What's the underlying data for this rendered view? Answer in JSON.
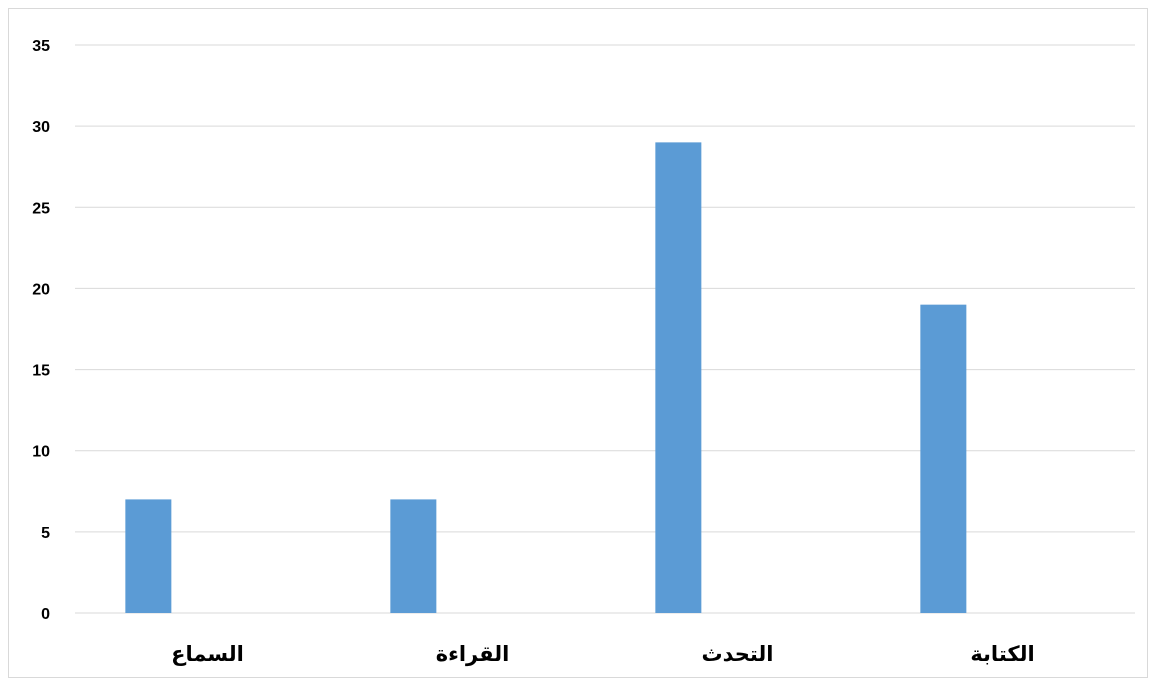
{
  "chart_data": {
    "type": "bar",
    "categories": [
      "السماع",
      "القراءة",
      "التحدث",
      "الكتابة"
    ],
    "values": [
      7,
      7,
      29,
      19
    ],
    "ylim": [
      0,
      35
    ],
    "yticks": [
      0,
      5,
      10,
      15,
      20,
      25,
      30,
      35
    ],
    "grid": true,
    "legend": "none",
    "bar_color": "#5b9bd5",
    "grid_color": "#d9d9d9"
  }
}
